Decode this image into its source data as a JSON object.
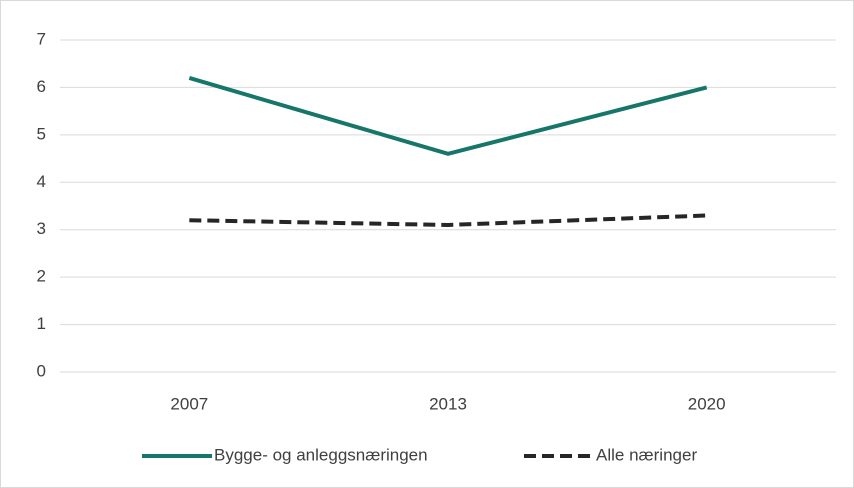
{
  "chart_data": {
    "type": "line",
    "categories": [
      "2007",
      "2013",
      "2020"
    ],
    "series": [
      {
        "name": "Bygge- og anleggsnæringen",
        "color": "#16766a",
        "dashed": false,
        "values": [
          6.2,
          4.6,
          6.0
        ]
      },
      {
        "name": "Alle næringer",
        "color": "#262626",
        "dashed": true,
        "values": [
          3.2,
          3.1,
          3.3
        ]
      }
    ],
    "ylim": [
      0,
      7
    ],
    "yticks": [
      0,
      1,
      2,
      3,
      4,
      5,
      6,
      7
    ],
    "grid": true
  }
}
